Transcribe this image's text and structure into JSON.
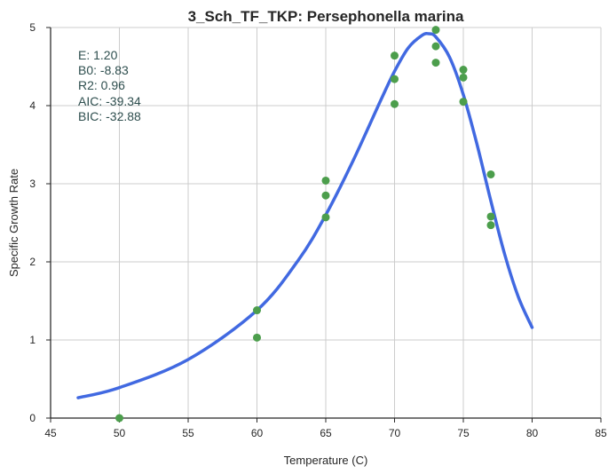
{
  "chart_data": {
    "type": "scatter",
    "title": "3_Sch_TF_TKP: Persephonella marina",
    "xlabel": "Temperature (C)",
    "ylabel": "Specific Growth Rate",
    "xlim": [
      45,
      85
    ],
    "ylim": [
      0,
      5
    ],
    "x_ticks": [
      45,
      50,
      55,
      60,
      65,
      70,
      75,
      80,
      85
    ],
    "y_ticks": [
      0,
      1,
      2,
      3,
      4,
      5
    ],
    "grid": true,
    "series": [
      {
        "type": "scatter",
        "color": "#4c9e4c",
        "x": [
          50,
          60,
          60,
          65,
          65,
          65,
          70,
          70,
          70,
          73,
          73,
          73,
          75,
          75,
          75,
          77,
          77,
          77
        ],
        "y": [
          0.0,
          1.38,
          1.03,
          3.04,
          2.85,
          2.57,
          4.64,
          4.34,
          4.02,
          4.97,
          4.76,
          4.55,
          4.46,
          4.36,
          4.05,
          3.12,
          2.58,
          2.47
        ]
      },
      {
        "type": "line",
        "color": "#4169e1",
        "x": [
          47,
          50,
          55,
          60,
          63,
          65,
          67,
          69,
          70,
          71,
          72,
          72.5,
          73,
          74,
          75,
          76,
          77,
          78,
          79,
          80
        ],
        "y": [
          0.26,
          0.39,
          0.75,
          1.38,
          2.02,
          2.6,
          3.3,
          4.07,
          4.44,
          4.74,
          4.9,
          4.92,
          4.88,
          4.62,
          4.14,
          3.5,
          2.78,
          2.1,
          1.55,
          1.16
        ]
      }
    ],
    "annotations": [
      "E:  1.20",
      "B0:  -8.83",
      "R2:  0.96",
      "AIC: -39.34",
      "BIC: -32.88"
    ]
  }
}
